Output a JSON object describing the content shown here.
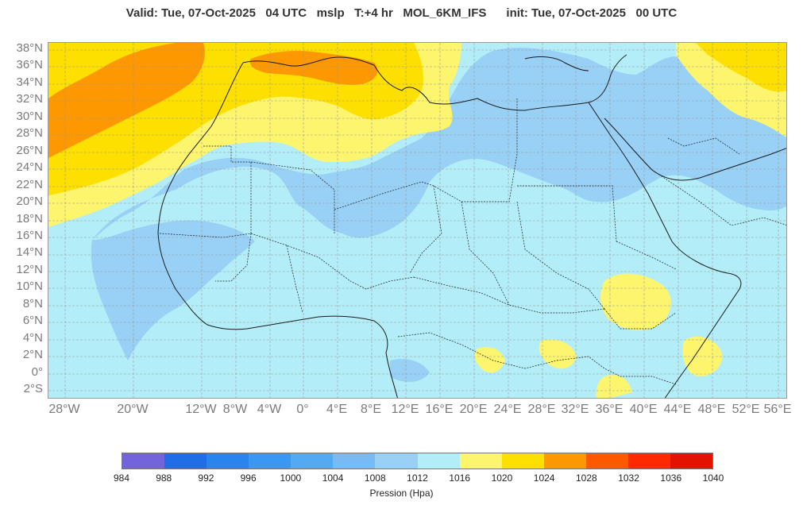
{
  "header": {
    "title": "Valid: Tue, 07-Oct-2025   04 UTC   mslp   T:+4 hr   MOL_6KM_IFS      init: Tue, 07-Oct-2025   00 UTC"
  },
  "map": {
    "lat_labels": [
      "38°N",
      "36°N",
      "34°N",
      "32°N",
      "30°N",
      "28°N",
      "26°N",
      "24°N",
      "22°N",
      "20°N",
      "18°N",
      "16°N",
      "14°N",
      "12°N",
      "10°N",
      "8°N",
      "6°N",
      "4°N",
      "2°N",
      "0°",
      "2°S"
    ],
    "lon_labels": [
      "28°W",
      "20°W",
      "12°W",
      "8°W",
      "4°W",
      "0°",
      "4°E",
      "8°E",
      "12°E",
      "16°E",
      "20°E",
      "24°E",
      "28°E",
      "32°E",
      "36°E",
      "40°E",
      "44°E",
      "48°E",
      "52°E",
      "56°E"
    ],
    "background_color": "#b3eef8",
    "grid_color": "#9a9a9a",
    "border_color": "#1a1a1a"
  },
  "colorbar": {
    "title": "Pression (Hpa)",
    "ticks": [
      "984",
      "988",
      "992",
      "996",
      "1000",
      "1004",
      "1008",
      "1012",
      "1016",
      "1020",
      "1024",
      "1028",
      "1032",
      "1036",
      "1040"
    ],
    "colors": [
      "#7464dc",
      "#1e6ee8",
      "#2a84ee",
      "#3a98f2",
      "#52aaf2",
      "#78baf4",
      "#98d0f6",
      "#b3eef8",
      "#fdf56e",
      "#fde000",
      "#fd9800",
      "#fd5a00",
      "#fd2a00",
      "#e21400"
    ]
  }
}
